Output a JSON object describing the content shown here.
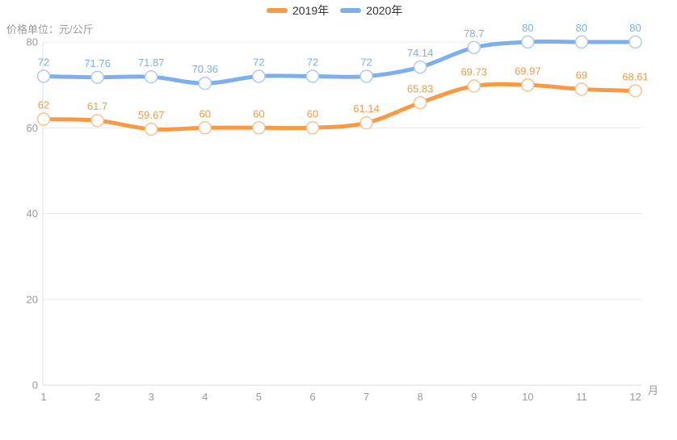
{
  "axis": {
    "y_unit_label": "价格单位：元/公斤",
    "x_unit_label": "月"
  },
  "colors": {
    "grid_line": "#E8E8E8",
    "axis_line": "#DCDCDC",
    "tick_text": "#9B9B9B",
    "legend_text": "#333333",
    "background": "#FFFFFF"
  },
  "chart_data": {
    "type": "line",
    "title": "",
    "categories": [
      "1",
      "2",
      "3",
      "4",
      "5",
      "6",
      "7",
      "8",
      "9",
      "10",
      "11",
      "12"
    ],
    "series": [
      {
        "name": "2019年",
        "color": "#F89A44",
        "marker_stroke": "#F8C491",
        "values": [
          62,
          61.7,
          59.67,
          60,
          60,
          60,
          61.14,
          65.83,
          69.73,
          69.97,
          69,
          68.61
        ],
        "point_labels": [
          "62",
          "61.7",
          "59.67",
          "60",
          "60",
          "60",
          "61.14",
          "65.83",
          "69.73",
          "69.97",
          "69",
          "68.61"
        ]
      },
      {
        "name": "2020年",
        "color": "#7CAFEB",
        "marker_stroke": "#B0CCF1",
        "values": [
          72,
          71.76,
          71.87,
          70.36,
          72,
          72,
          72,
          74.14,
          78.7,
          80,
          80,
          80
        ],
        "point_labels": [
          "72",
          "71.76",
          "71.87",
          "70.36",
          "72",
          "72",
          "72",
          "74.14",
          "78.7",
          "80",
          "80",
          "80"
        ]
      }
    ],
    "xlabel": "月",
    "ylabel": "价格单位：元/公斤",
    "ylim": [
      0,
      80
    ],
    "yticks": [
      0,
      20,
      40,
      60,
      80
    ],
    "grid": true,
    "legend_position": "top",
    "smooth": true,
    "point_markers": "white-filled circles with light colored stroke",
    "value_labels_shown": true
  }
}
